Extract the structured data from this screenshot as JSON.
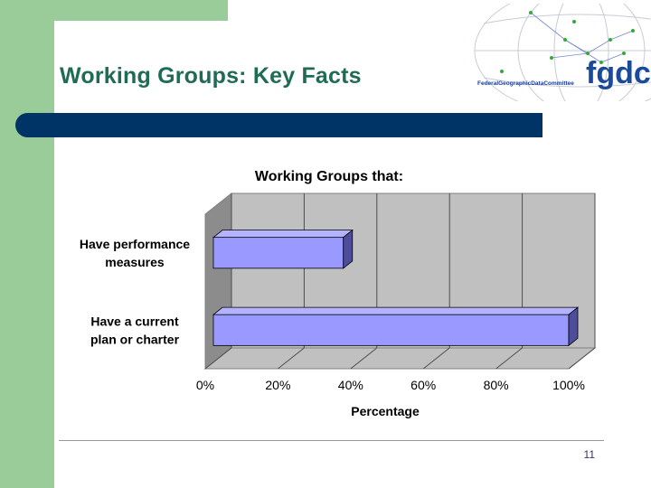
{
  "slide": {
    "title": "Working Groups: Key Facts",
    "page_number": "11",
    "bar_color": "#003366",
    "accent_green": "#99cc99"
  },
  "logo": {
    "main_text": "fgdc",
    "sub_text": "FederalGeographicDataCommittee",
    "icon": "globe-icon"
  },
  "chart_data": {
    "type": "bar",
    "orientation": "horizontal",
    "style": "3d",
    "title": "Working Groups that:",
    "xlabel": "Percentage",
    "ylabel": "",
    "categories": [
      "Have performance measures",
      "Have a current plan or charter"
    ],
    "category_lines": [
      [
        "Have performance",
        "measures"
      ],
      [
        "Have a current",
        "plan or charter"
      ]
    ],
    "values": [
      38,
      100
    ],
    "xlim": [
      0,
      100
    ],
    "ticks": [
      "0%",
      "20%",
      "40%",
      "60%",
      "80%",
      "100%"
    ],
    "grid": true,
    "legend": "none",
    "bar_color": "#9999ff",
    "plot_background": "#c0c0c0"
  }
}
